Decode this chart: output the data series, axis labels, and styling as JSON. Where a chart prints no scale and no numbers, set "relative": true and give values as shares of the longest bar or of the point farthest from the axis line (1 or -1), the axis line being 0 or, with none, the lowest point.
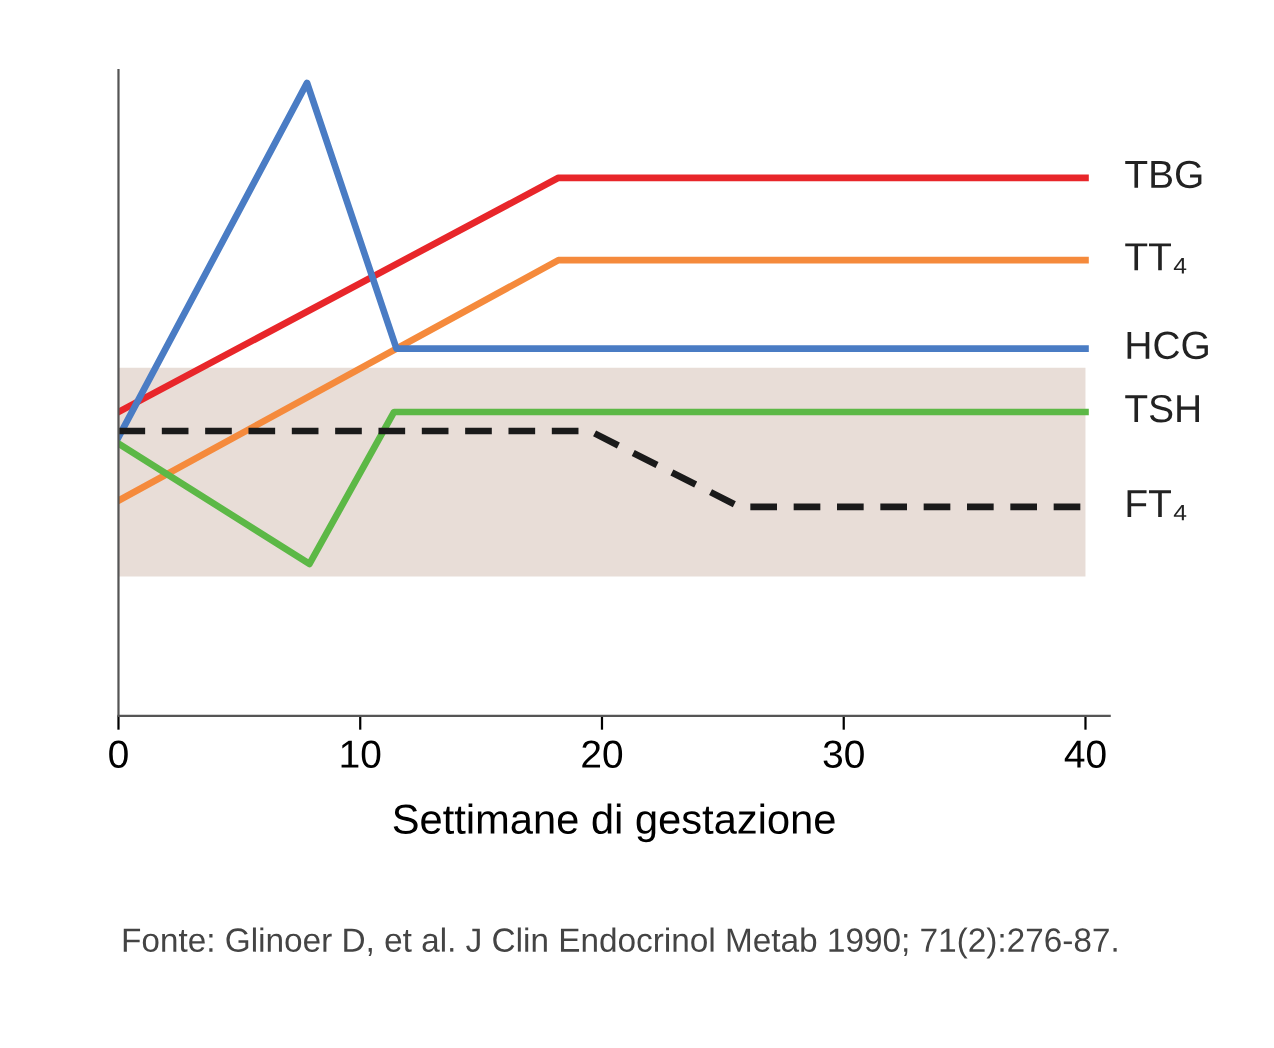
{
  "chart_data": {
    "type": "line",
    "relative": true,
    "xlabel": "Settimane di gestazione",
    "xlim": [
      0,
      41
    ],
    "xticks": [
      0,
      10,
      20,
      30,
      40
    ],
    "grid": false,
    "legend": false,
    "series": [
      {
        "name": "TBG",
        "color": "#e8262a",
        "x": [
          0,
          18.2,
          40
        ],
        "values": [
          0.48,
          0.85,
          0.85
        ]
      },
      {
        "name": "TT₄",
        "color": "#f58a3c",
        "x": [
          0,
          18.2,
          40
        ],
        "values": [
          0.34,
          0.72,
          0.72
        ]
      },
      {
        "name": "HCG",
        "color": "#4a7cc4",
        "x": [
          0,
          7.8,
          11.5,
          40
        ],
        "values": [
          0.44,
          1.0,
          0.58,
          0.58
        ]
      },
      {
        "name": "TSH",
        "color": "#5cb846",
        "x": [
          0,
          7.9,
          11.4,
          40
        ],
        "values": [
          0.43,
          0.24,
          0.48,
          0.48
        ]
      },
      {
        "name": "FT₄",
        "color": "#1a1a1a",
        "line_style": "dashed",
        "x": [
          0,
          19.5,
          25.7,
          40
        ],
        "values": [
          0.45,
          0.45,
          0.33,
          0.33
        ]
      }
    ],
    "bands": [
      {
        "axis": "y",
        "from": 0.22,
        "to": 0.55,
        "color": "#e8ddd7"
      }
    ],
    "annotations": [
      "Fonte: Glinoer D, et al. J Clin Endocrinol Metab 1990; 71(2):276-87."
    ]
  }
}
